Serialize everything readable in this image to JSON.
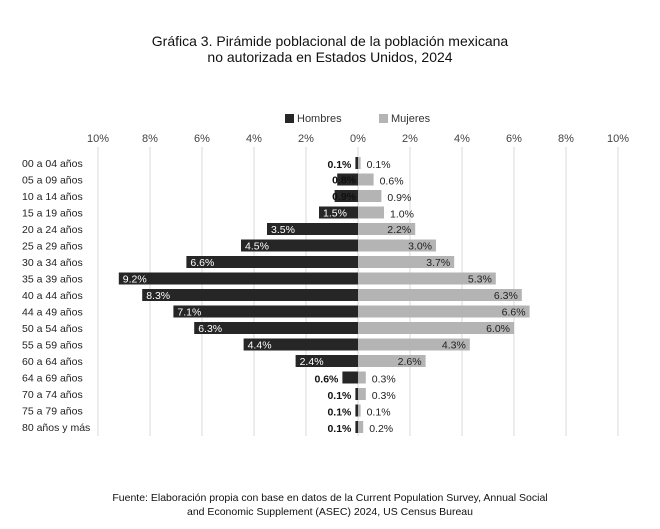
{
  "title_line1": "Gráfica 3. Pirámide poblacional de la población mexicana",
  "title_line2": "no autorizada en Estados Unidos, 2024",
  "source_line1": "Fuente: Elaboración propia con base en datos de la Current Population Survey, Annual Social",
  "source_line2": "and Economic Supplement (ASEC) 2024, US Census Bureau",
  "chart_data": {
    "type": "bar",
    "orientation": "horizontal-pyramid",
    "categories": [
      "00 a 04 años",
      "05 a 09 años",
      "10 a 14 años",
      "15 a 19 años",
      "20 a 24 años",
      "25 a 29 años",
      "30 a 34 años",
      "35 a 39 años",
      "40 a 44 años",
      "44 a 49 años",
      "50 a 54 años",
      "55 a 59 años",
      "60 a 64 años",
      "64 a 69 años",
      "70 a 74 años",
      "75 a 79 años",
      "80 años y más"
    ],
    "series": [
      {
        "name": "Hombres",
        "color": "#262626",
        "values": [
          0.1,
          0.8,
          0.9,
          1.5,
          3.5,
          4.5,
          6.6,
          9.2,
          8.3,
          7.1,
          6.3,
          4.4,
          2.4,
          0.6,
          0.1,
          0.1,
          0.1
        ],
        "labels": [
          "0.1%",
          "0.8%",
          "0.9%",
          "1.5%",
          "3.5%",
          "4.5%",
          "6.6%",
          "9.2%",
          "8.3%",
          "7.1%",
          "6.3%",
          "4.4%",
          "2.4%",
          "0.6%",
          "0.1%",
          "0.1%",
          "0.1%"
        ]
      },
      {
        "name": "Mujeres",
        "color": "#b4b4b4",
        "values": [
          0.1,
          0.6,
          0.9,
          1.0,
          2.2,
          3.0,
          3.7,
          5.3,
          6.3,
          6.6,
          6.0,
          4.3,
          2.6,
          0.3,
          0.3,
          0.1,
          0.2
        ],
        "labels": [
          "0.1%",
          "0.6%",
          "0.9%",
          "1.0%",
          "2.2%",
          "3.0%",
          "3.7%",
          "5.3%",
          "6.3%",
          "6.6%",
          "6.0%",
          "4.3%",
          "2.6%",
          "0.3%",
          "0.3%",
          "0.1%",
          "0.2%"
        ]
      }
    ],
    "x_ticks": [
      "10%",
      "8%",
      "6%",
      "4%",
      "2%",
      "0%",
      "2%",
      "4%",
      "6%",
      "8%",
      "10%"
    ],
    "xlim": [
      -10,
      10
    ],
    "grid": true,
    "legend": "top-center"
  }
}
